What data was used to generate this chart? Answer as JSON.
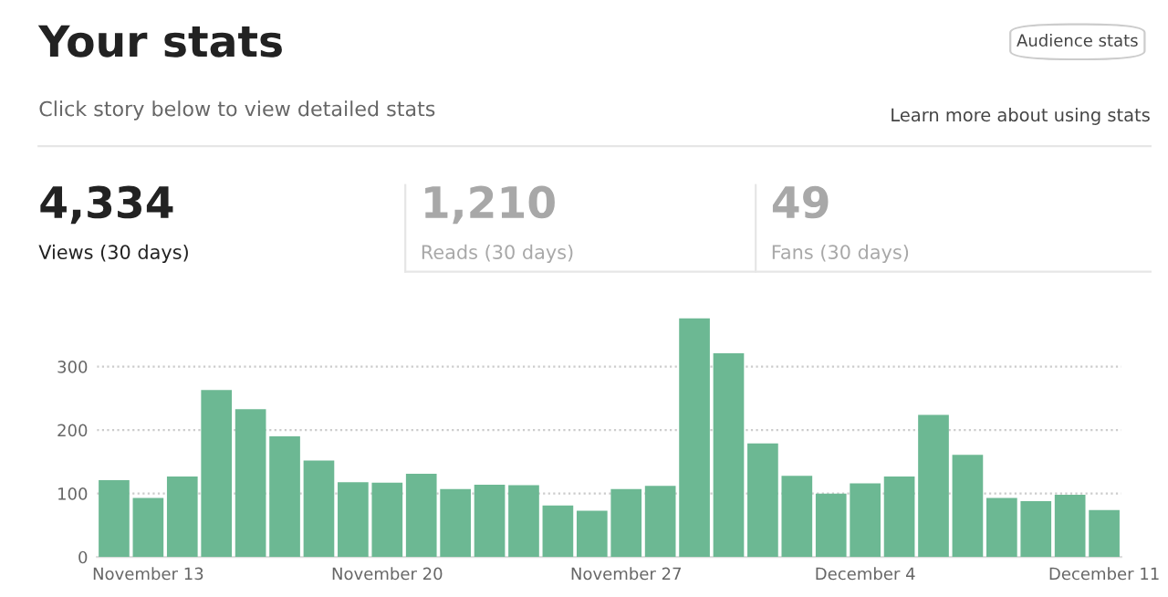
{
  "chart_data": {
    "type": "bar",
    "title": "Your stats",
    "annotations": [
      "Click story below to view detailed stats",
      "Audience stats",
      "Learn more about using stats",
      "4,334",
      "Views (30 days)",
      "1,210",
      "Reads (30 days)",
      "49",
      "Fans (30 days)"
    ],
    "categories": [
      null,
      "November 13",
      null,
      null,
      null,
      null,
      null,
      null,
      "November 20",
      null,
      null,
      null,
      null,
      null,
      null,
      "November 27",
      null,
      null,
      null,
      null,
      null,
      null,
      "December 4",
      null,
      null,
      null,
      null,
      null,
      null,
      "December 11"
    ],
    "values": [
      121,
      93,
      127,
      263,
      233,
      190,
      152,
      118,
      117,
      131,
      107,
      114,
      113,
      81,
      73,
      107,
      112,
      376,
      321,
      179,
      128,
      100,
      116,
      127,
      224,
      161,
      93,
      88,
      98,
      74
    ],
    "color": "#6cb893",
    "ylim": [
      0,
      380
    ],
    "yticks": [
      0,
      100,
      200,
      300
    ],
    "grid": "y",
    "legend": false
  }
}
